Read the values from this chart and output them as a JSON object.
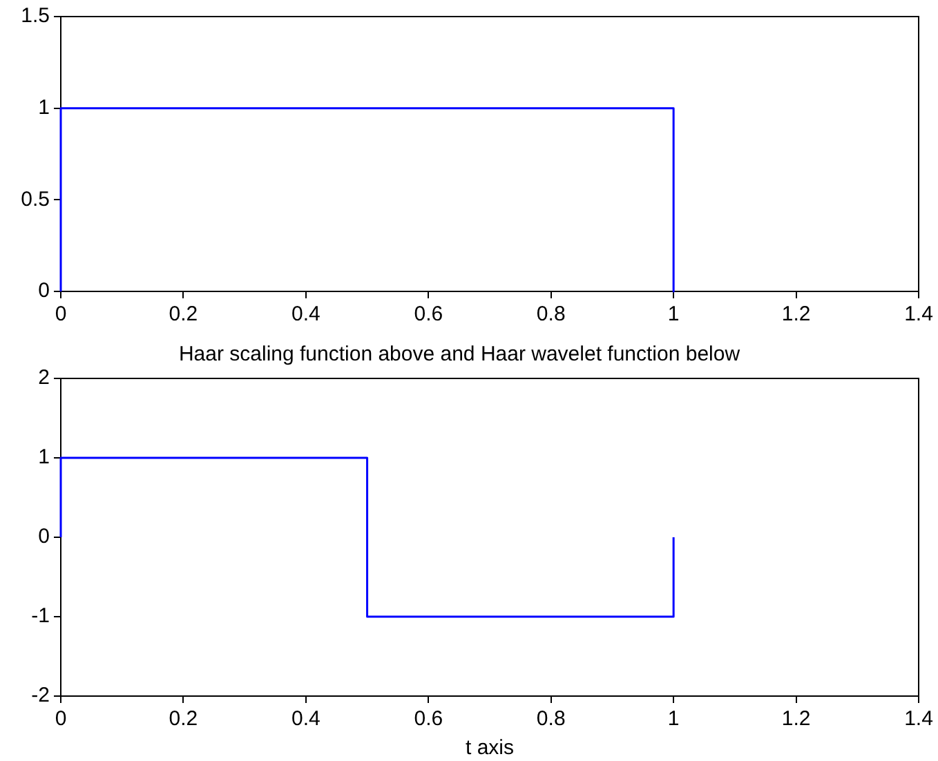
{
  "chart_data": [
    {
      "type": "line",
      "x": [
        0,
        0,
        1,
        1
      ],
      "series": [
        {
          "color": "#0000ff",
          "values": [
            0,
            1,
            1,
            0
          ]
        }
      ],
      "xlim": [
        0,
        1.4
      ],
      "xticks": [
        0,
        0.2,
        0.4,
        0.6,
        0.8,
        1,
        1.2,
        1.4
      ],
      "ylim": [
        0,
        1.5
      ],
      "yticks": [
        0,
        0.5,
        1,
        1.5
      ],
      "legend": false
    },
    {
      "type": "line",
      "title": "Haar scaling function above and Haar wavelet function below",
      "xlabel": "t axis",
      "x": [
        0,
        0,
        0.5,
        0.5,
        1,
        1
      ],
      "series": [
        {
          "color": "#0000ff",
          "values": [
            0,
            1,
            1,
            -1,
            -1,
            0
          ]
        }
      ],
      "xlim": [
        0,
        1.4
      ],
      "xticks": [
        0,
        0.2,
        0.4,
        0.6,
        0.8,
        1,
        1.2,
        1.4
      ],
      "ylim": [
        -2,
        2
      ],
      "yticks": [
        -2,
        -1,
        0,
        1,
        2
      ],
      "legend": false
    }
  ]
}
